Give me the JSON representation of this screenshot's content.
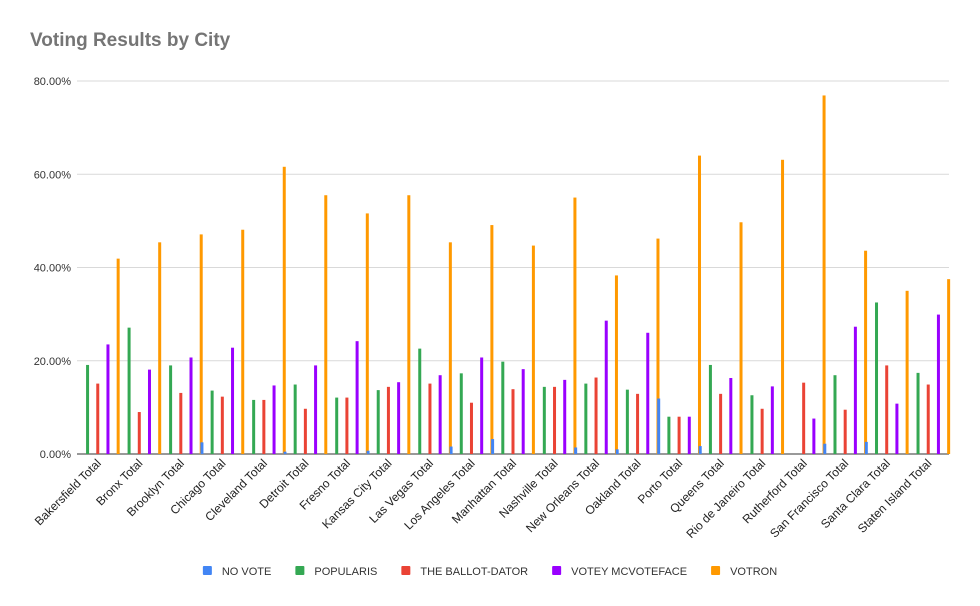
{
  "chart_data": {
    "type": "bar",
    "title": "Voting Results by City",
    "xlabel": "",
    "ylabel": "",
    "ylim": [
      0,
      80
    ],
    "yticks": [
      "0.00%",
      "20.00%",
      "40.00%",
      "60.00%",
      "80.00%"
    ],
    "ytick_values": [
      0,
      20,
      40,
      60,
      80
    ],
    "grid": true,
    "legend_position": "bottom",
    "categories": [
      "Bakersfield Total",
      "Bronx Total",
      "Brooklyn Total",
      "Chicago Total",
      "Cleveland Total",
      "Detroit Total",
      "Fresno Total",
      "Kansas City Total",
      "Las Vegas Total",
      "Los Angeles Total",
      "Manhattan Total",
      "Nashville Total",
      "New Orleans Total",
      "Oakland Total",
      "Porto Total",
      "Queens Total",
      "Rio de Janeiro Total",
      "Rutherford Total",
      "San Francisco Total",
      "Santa Clara Total",
      "Staten Island Total"
    ],
    "series": [
      {
        "name": "NO VOTE",
        "color": "#4285f4",
        "values": [
          0,
          0,
          0,
          2.5,
          0,
          0.5,
          0,
          0.7,
          0,
          1.6,
          3.2,
          0,
          1.4,
          1,
          11.9,
          1.7,
          0,
          0,
          2.2,
          2.6,
          0
        ]
      },
      {
        "name": "POPULARIS",
        "color": "#34a853",
        "values": [
          19.1,
          27.1,
          19,
          13.6,
          11.6,
          14.9,
          12.1,
          13.7,
          22.6,
          17.3,
          19.8,
          14.4,
          15.1,
          13.8,
          8,
          19.1,
          12.6,
          0,
          16.9,
          32.5,
          17.4
        ]
      },
      {
        "name": "THE BALLOT-DATOR",
        "color": "#ea4335",
        "values": [
          15.1,
          9,
          13.1,
          12.3,
          11.6,
          9.7,
          12.1,
          14.4,
          15.1,
          11,
          13.9,
          14.4,
          16.4,
          12.9,
          8,
          12.9,
          9.7,
          15.3,
          9.5,
          19,
          14.9
        ]
      },
      {
        "name": "VOTEY MCVOTEFACE",
        "color": "#9900ff",
        "values": [
          23.5,
          18.1,
          20.7,
          22.8,
          14.7,
          19,
          24.2,
          15.4,
          16.9,
          20.7,
          18.2,
          15.9,
          28.6,
          26,
          8,
          16.3,
          14.5,
          7.6,
          27.3,
          10.8,
          29.9
        ]
      },
      {
        "name": "VOTRON",
        "color": "#ff9900",
        "values": [
          41.9,
          45.4,
          47.1,
          48.1,
          61.6,
          55.5,
          51.6,
          55.5,
          45.4,
          49.1,
          44.7,
          55,
          38.3,
          46.2,
          64,
          49.7,
          63.1,
          76.9,
          43.6,
          35,
          37.5
        ]
      }
    ]
  }
}
